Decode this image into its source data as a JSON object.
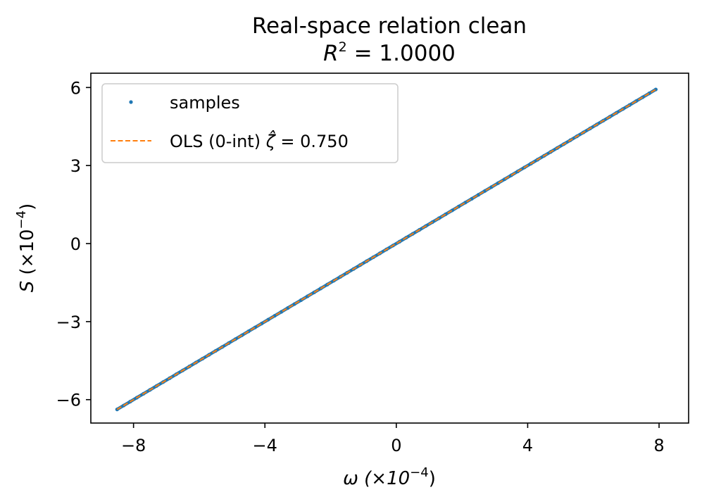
{
  "chart_data": {
    "type": "scatter",
    "title": "Real-space relation clean",
    "subtitle": "R² = 1.0000",
    "subtitle_parts": {
      "symbol": "R",
      "exponent": "2",
      "rest": " = 1.0000"
    },
    "xlabel": "ω (×10⁻⁴)",
    "xlabel_parts": {
      "base": "ω (×10",
      "exponent": "−4",
      "close": ")"
    },
    "ylabel": "S (×10⁻⁴)",
    "ylabel_parts": {
      "symbol": "S",
      "base": " (×10",
      "exponent": "−4",
      "close": ")"
    },
    "xlim": [
      -9.3,
      8.9
    ],
    "ylim": [
      -6.9,
      6.55
    ],
    "x_ticks": [
      -8,
      -4,
      0,
      4,
      8
    ],
    "x_tick_labels": [
      "−8",
      "−4",
      "0",
      "4",
      "8"
    ],
    "y_ticks": [
      -6,
      -3,
      0,
      3,
      6
    ],
    "y_tick_labels": [
      "−6",
      "−3",
      "0",
      "3",
      "6"
    ],
    "grid": false,
    "legend_position": "upper-left",
    "series": [
      {
        "name": "samples",
        "kind": "scatter",
        "color": "#1f77b4",
        "x": [
          -8.5,
          -8.3,
          -8.1,
          -7.9,
          -7.7,
          -7.5,
          -7.3,
          -7.1,
          -6.9,
          -6.7,
          -6.5,
          -6.3,
          -6.1,
          -5.9,
          -5.7,
          -5.5,
          -5.3,
          -5.1,
          -4.9,
          -4.7,
          -4.5,
          -4.3,
          -4.1,
          -3.9,
          -3.7,
          -3.5,
          -3.3,
          -3.1,
          -2.9,
          -2.7,
          -2.5,
          -2.3,
          -2.1,
          -1.9,
          -1.7,
          -1.5,
          -1.3,
          -1.1,
          -0.9,
          -0.7,
          -0.5,
          -0.3,
          -0.1,
          0.1,
          0.3,
          0.5,
          0.7,
          0.9,
          1.1,
          1.3,
          1.5,
          1.7,
          1.9,
          2.1,
          2.3,
          2.5,
          2.7,
          2.9,
          3.1,
          3.3,
          3.5,
          3.7,
          3.9,
          4.1,
          4.3,
          4.5,
          4.7,
          4.9,
          5.1,
          5.3,
          5.5,
          5.7,
          5.9,
          6.1,
          6.3,
          6.5,
          6.7,
          6.9,
          7.1,
          7.3,
          7.5,
          7.7,
          7.9
        ],
        "y": [
          -6.375,
          -6.225,
          -6.075,
          -5.925,
          -5.775,
          -5.625,
          -5.475,
          -5.325,
          -5.175,
          -5.025,
          -4.875,
          -4.725,
          -4.575,
          -4.425,
          -4.275,
          -4.125,
          -3.975,
          -3.825,
          -3.675,
          -3.525,
          -3.375,
          -3.225,
          -3.075,
          -2.925,
          -2.775,
          -2.625,
          -2.475,
          -2.325,
          -2.175,
          -2.025,
          -1.875,
          -1.725,
          -1.575,
          -1.425,
          -1.275,
          -1.125,
          -0.975,
          -0.825,
          -0.675,
          -0.525,
          -0.375,
          -0.225,
          -0.075,
          0.075,
          0.225,
          0.375,
          0.525,
          0.675,
          0.825,
          0.975,
          1.125,
          1.275,
          1.425,
          1.575,
          1.725,
          1.875,
          2.025,
          2.175,
          2.325,
          2.475,
          2.625,
          2.775,
          2.925,
          3.075,
          3.225,
          3.375,
          3.525,
          3.675,
          3.825,
          3.975,
          4.125,
          4.275,
          4.425,
          4.575,
          4.725,
          4.875,
          5.025,
          5.175,
          5.325,
          5.475,
          5.625,
          5.775,
          5.925
        ]
      },
      {
        "name": "OLS (0-int)",
        "legend_label_parts": {
          "prefix": "OLS (0-int) ",
          "symbol": "ζ̂",
          "rest": " = 0.750"
        },
        "kind": "line",
        "style": "dashed",
        "color": "#ff7f0e",
        "slope": 0.75,
        "intercept": 0,
        "x": [
          -8.5,
          7.9
        ],
        "y": [
          -6.375,
          5.925
        ]
      }
    ]
  }
}
